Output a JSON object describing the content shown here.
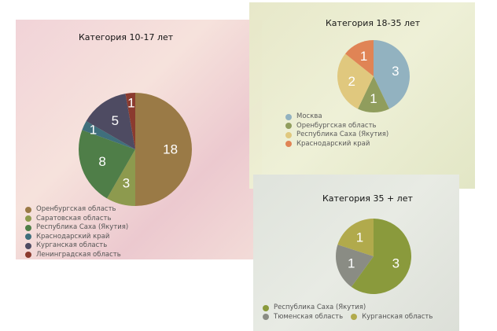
{
  "chart_data": [
    {
      "type": "pie",
      "title": "Категория 10-17 лет",
      "legend_position": "bottom-left",
      "categories": [
        "Оренбургская область",
        "Саратовская область",
        "Республика Саха (Якутия)",
        "Краснодарский край",
        "Курганская область",
        "Ленинградская область"
      ],
      "values": [
        18,
        3,
        8,
        1,
        5,
        1
      ],
      "colors": [
        "#9a7a46",
        "#8d9a4e",
        "#4f7e48",
        "#3f6f7c",
        "#4e4b62",
        "#8b3b2f"
      ]
    },
    {
      "type": "pie",
      "title": "Категория 18-35 лет",
      "legend_position": "bottom-left",
      "categories": [
        "Москва",
        "Оренбургская область",
        "Республика Саха (Якутия)",
        "Краснодарский край"
      ],
      "values": [
        3,
        1,
        2,
        1
      ],
      "colors": [
        "#8fb0be",
        "#8d9a58",
        "#dfc77a",
        "#df8150"
      ]
    },
    {
      "type": "pie",
      "title": "Категория 35 + лет",
      "legend_position": "bottom",
      "categories": [
        "Республика Саха (Якутия)",
        "Тюменская область",
        "Курганская область"
      ],
      "values": [
        3,
        1,
        1
      ],
      "colors": [
        "#8a9a3c",
        "#8a8c84",
        "#b1aa4c"
      ]
    }
  ]
}
